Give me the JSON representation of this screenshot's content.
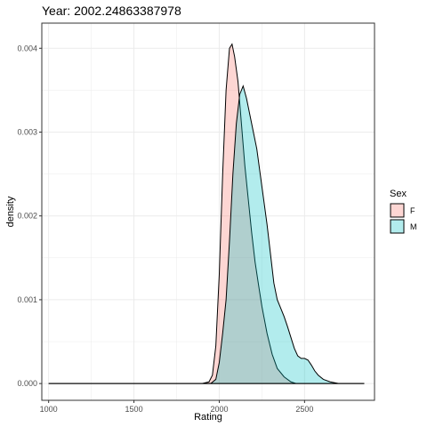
{
  "chart_data": {
    "type": "area",
    "title": "Year: 2002.24863387978",
    "xlabel": "Rating",
    "ylabel": "density",
    "xlim": [
      960,
      2910
    ],
    "ylim": [
      -0.0002,
      0.0043
    ],
    "x_ticks": [
      1000,
      1500,
      2000,
      2500
    ],
    "x_tick_labels": [
      "1000",
      "1500",
      "2000",
      "2500"
    ],
    "y_ticks": [
      0.0,
      0.001,
      0.002,
      0.003,
      0.004
    ],
    "y_tick_labels": [
      "0.000",
      "0.001",
      "0.002",
      "0.003",
      "0.004"
    ],
    "grid": true,
    "legend_title": "Sex",
    "legend_position": "right",
    "series": [
      {
        "name": "F",
        "color": "#F8766D",
        "points": [
          [
            1000,
            0.0
          ],
          [
            1900,
            0.0
          ],
          [
            1940,
            2e-05
          ],
          [
            1960,
            0.0001
          ],
          [
            1980,
            0.00045
          ],
          [
            2000,
            0.0013
          ],
          [
            2020,
            0.0025
          ],
          [
            2040,
            0.0035
          ],
          [
            2060,
            0.004
          ],
          [
            2075,
            0.00405
          ],
          [
            2090,
            0.0039
          ],
          [
            2110,
            0.0036
          ],
          [
            2130,
            0.0031
          ],
          [
            2150,
            0.0026
          ],
          [
            2170,
            0.0022
          ],
          [
            2190,
            0.0018
          ],
          [
            2210,
            0.00145
          ],
          [
            2230,
            0.00118
          ],
          [
            2250,
            0.00092
          ],
          [
            2280,
            0.0006
          ],
          [
            2310,
            0.00035
          ],
          [
            2340,
            0.00018
          ],
          [
            2380,
            8e-05
          ],
          [
            2420,
            2e-05
          ],
          [
            2450,
            0.0
          ],
          [
            2850,
            0.0
          ]
        ]
      },
      {
        "name": "M",
        "color": "#00BFC4",
        "points": [
          [
            1000,
            0.0
          ],
          [
            1950,
            0.0
          ],
          [
            1980,
            5e-05
          ],
          [
            2000,
            0.00025
          ],
          [
            2020,
            0.0006
          ],
          [
            2040,
            0.001
          ],
          [
            2060,
            0.0017
          ],
          [
            2080,
            0.0025
          ],
          [
            2100,
            0.0031
          ],
          [
            2120,
            0.00345
          ],
          [
            2140,
            0.00355
          ],
          [
            2160,
            0.0034
          ],
          [
            2180,
            0.0032
          ],
          [
            2200,
            0.003
          ],
          [
            2220,
            0.0028
          ],
          [
            2240,
            0.0025
          ],
          [
            2260,
            0.0022
          ],
          [
            2280,
            0.0019
          ],
          [
            2300,
            0.00155
          ],
          [
            2320,
            0.0012
          ],
          [
            2340,
            0.001
          ],
          [
            2360,
            0.0009
          ],
          [
            2380,
            0.0008
          ],
          [
            2400,
            0.00068
          ],
          [
            2420,
            0.00055
          ],
          [
            2440,
            0.00042
          ],
          [
            2460,
            0.00033
          ],
          [
            2480,
            0.0003
          ],
          [
            2500,
            0.0003
          ],
          [
            2520,
            0.00028
          ],
          [
            2540,
            0.00022
          ],
          [
            2560,
            0.00015
          ],
          [
            2580,
            0.0001
          ],
          [
            2610,
            5e-05
          ],
          [
            2650,
            2e-05
          ],
          [
            2700,
            0.0
          ],
          [
            2850,
            0.0
          ]
        ]
      }
    ]
  }
}
